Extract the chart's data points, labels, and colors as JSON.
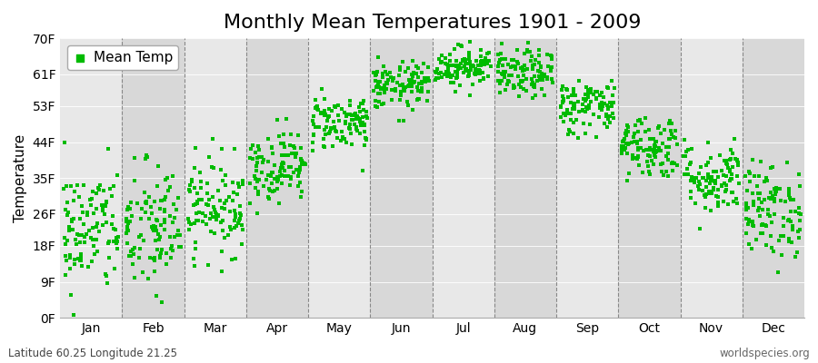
{
  "title": "Monthly Mean Temperatures 1901 - 2009",
  "ylabel": "Temperature",
  "legend_label": "Mean Temp",
  "footer_left": "Latitude 60.25 Longitude 21.25",
  "footer_right": "worldspecies.org",
  "ytick_labels": [
    "0F",
    "9F",
    "18F",
    "26F",
    "35F",
    "44F",
    "53F",
    "61F",
    "70F"
  ],
  "ytick_values": [
    0,
    9,
    18,
    26,
    35,
    44,
    53,
    61,
    70
  ],
  "months": [
    "Jan",
    "Feb",
    "Mar",
    "Apr",
    "May",
    "Jun",
    "Jul",
    "Aug",
    "Sep",
    "Oct",
    "Nov",
    "Dec"
  ],
  "monthly_mean_F": [
    22,
    22,
    28,
    38,
    49,
    58,
    63,
    61,
    53,
    43,
    35,
    27
  ],
  "monthly_std_F": [
    8.0,
    8.5,
    6.0,
    4.5,
    3.5,
    3.0,
    2.5,
    3.0,
    3.5,
    4.0,
    4.5,
    6.0
  ],
  "num_years": 109,
  "dot_color": "#00BB00",
  "dot_size": 8,
  "title_fontsize": 16,
  "axis_fontsize": 11,
  "tick_fontsize": 10,
  "ylim": [
    0,
    70
  ],
  "band_colors_vert": [
    "#e8e8e8",
    "#d8d8d8"
  ],
  "dashed_line_color": "#888888",
  "spine_color": "#aaaaaa"
}
